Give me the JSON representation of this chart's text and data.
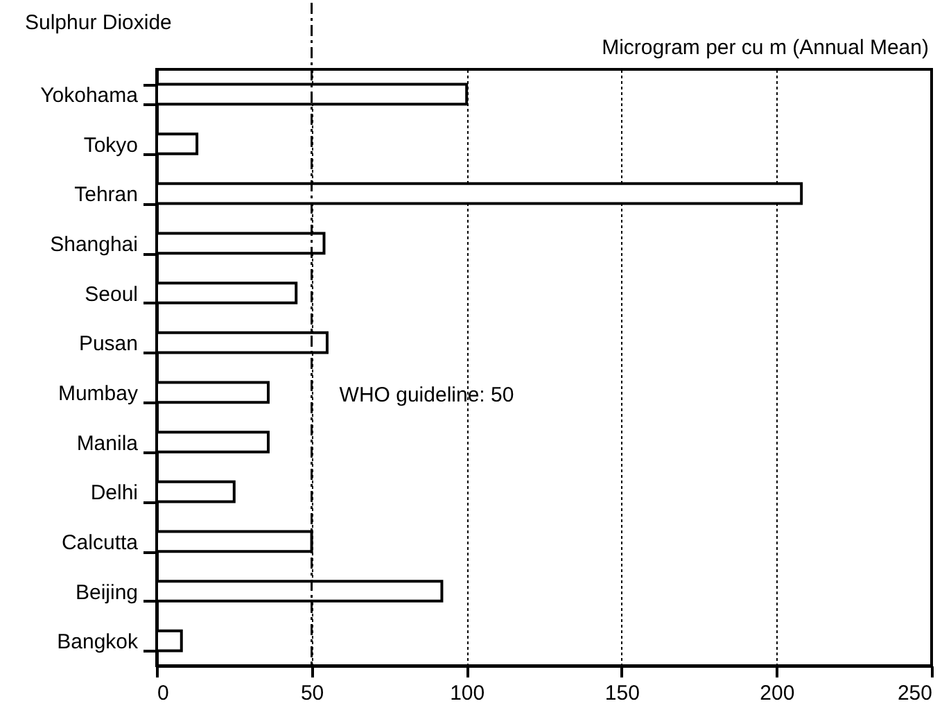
{
  "chart_data": {
    "type": "bar",
    "orientation": "horizontal",
    "title": "Sulphur Dioxide",
    "xlabel": "Microgram per cu m (Annual Mean)",
    "categories": [
      "Yokohama",
      "Tokyo",
      "Tehran",
      "Shanghai",
      "Seoul",
      "Pusan",
      "Mumbay",
      "Manila",
      "Delhi",
      "Calcutta",
      "Beijing",
      "Bangkok"
    ],
    "values": [
      100,
      13,
      208,
      54,
      45,
      55,
      36,
      36,
      25,
      50,
      92,
      8
    ],
    "color": "#ffffff",
    "xlim": [
      0,
      250
    ],
    "xticks": [
      0,
      50,
      100,
      150,
      200,
      250
    ],
    "grid": "x",
    "ref_lines": [
      {
        "axis": "x",
        "value": 50,
        "label": "WHO guideline: 50",
        "line_style": "dashdot"
      }
    ]
  }
}
